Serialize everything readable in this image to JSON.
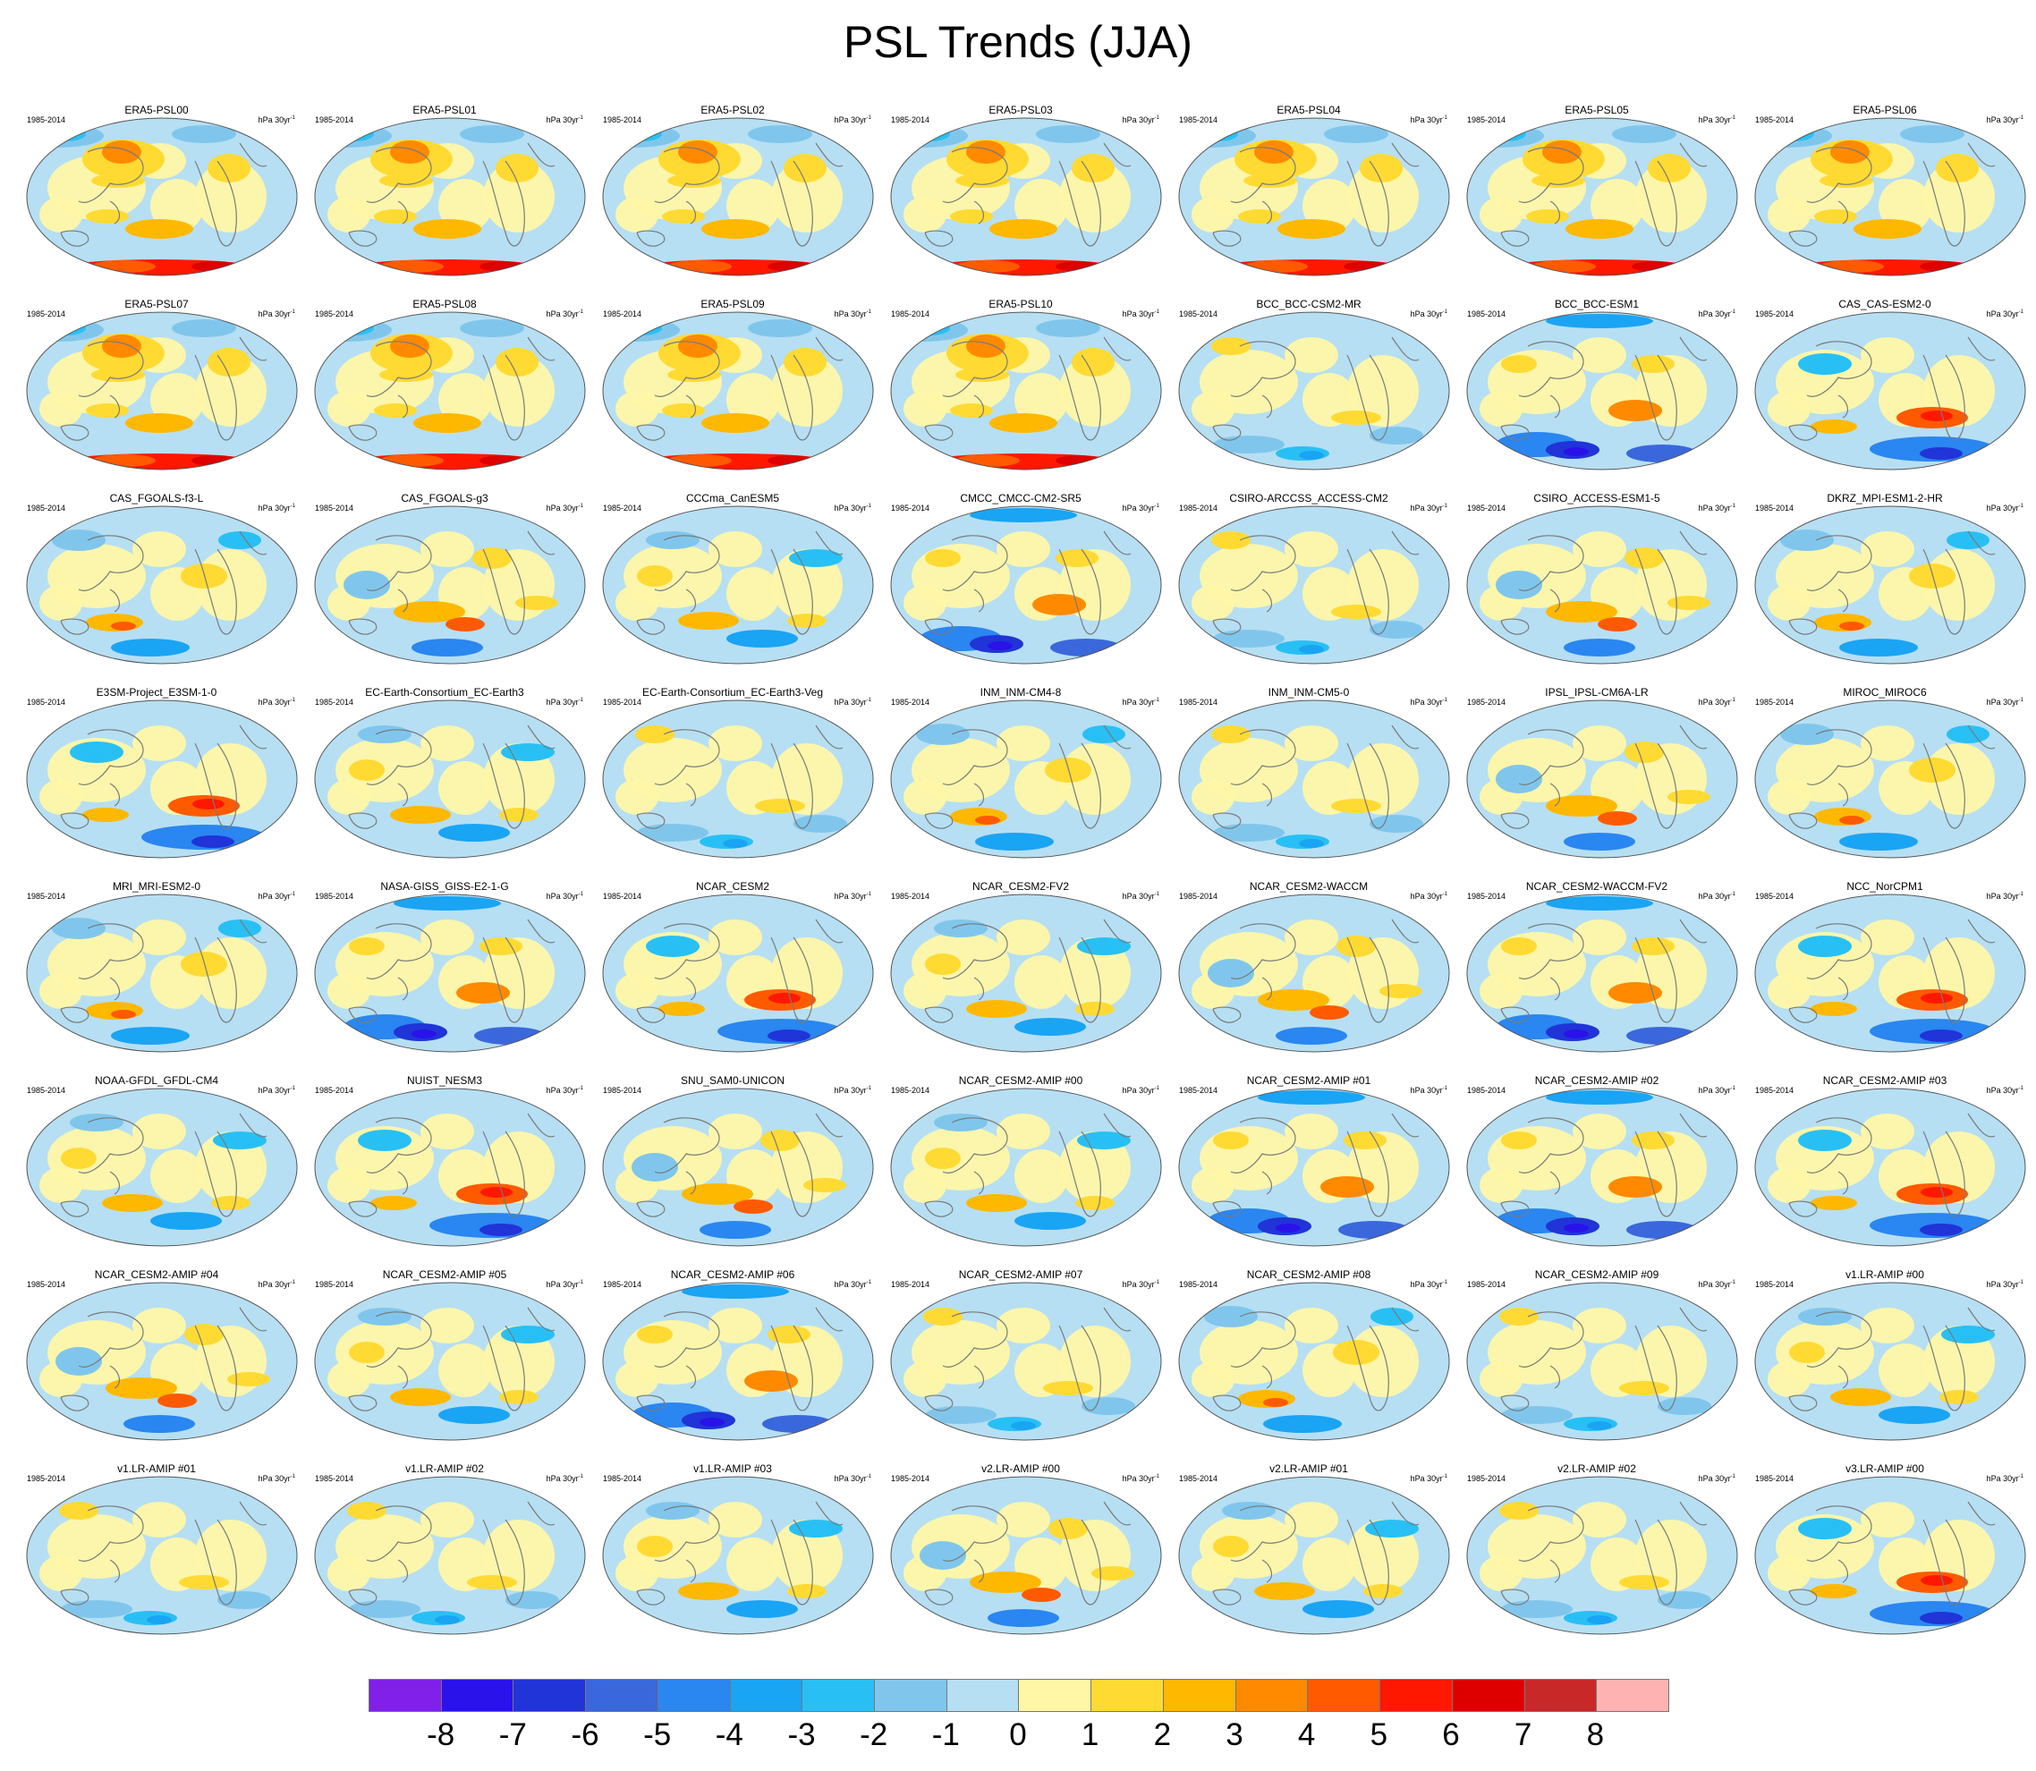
{
  "title": "PSL Trends (JJA)",
  "panel_period": "1985-2014",
  "panel_units_base": "hPa 30yr",
  "panel_units_exp": "-1",
  "colors": {
    "ocean_neutral": "#b6dff3",
    "land_neutral": "#fff7a6",
    "coastline": "#7a7a7a",
    "map_outline": "#555555"
  },
  "chart_data": {
    "type": "heatmap",
    "projection": "Robinson (global map, centered on Pacific)",
    "variable": "PSL",
    "season": "JJA",
    "colorbar": {
      "tick_labels": [
        "-8",
        "-7",
        "-6",
        "-5",
        "-4",
        "-3",
        "-2",
        "-1",
        "0",
        "1",
        "2",
        "3",
        "4",
        "5",
        "6",
        "7",
        "8"
      ],
      "colors": [
        "#8020e8",
        "#2a12ea",
        "#2034d8",
        "#3a68dc",
        "#2a86f0",
        "#1aa4f4",
        "#28c0f4",
        "#80c6ec",
        "#b6dff3",
        "#fff7a6",
        "#ffda33",
        "#ffb800",
        "#ff8a00",
        "#ff5a00",
        "#ff1800",
        "#de0000",
        "#c82828",
        "#ffb2b2"
      ]
    },
    "panels": [
      {
        "name": "ERA5-PSL00",
        "style": 0
      },
      {
        "name": "ERA5-PSL01",
        "style": 0
      },
      {
        "name": "ERA5-PSL02",
        "style": 0
      },
      {
        "name": "ERA5-PSL03",
        "style": 0
      },
      {
        "name": "ERA5-PSL04",
        "style": 0
      },
      {
        "name": "ERA5-PSL05",
        "style": 0
      },
      {
        "name": "ERA5-PSL06",
        "style": 0
      },
      {
        "name": "ERA5-PSL07",
        "style": 0
      },
      {
        "name": "ERA5-PSL08",
        "style": 0
      },
      {
        "name": "ERA5-PSL09",
        "style": 0
      },
      {
        "name": "ERA5-PSL10",
        "style": 0
      },
      {
        "name": "BCC_BCC-CSM2-MR",
        "style": 1
      },
      {
        "name": "BCC_BCC-ESM1",
        "style": 2
      },
      {
        "name": "CAS_CAS-ESM2-0",
        "style": 3
      },
      {
        "name": "CAS_FGOALS-f3-L",
        "style": 4
      },
      {
        "name": "CAS_FGOALS-g3",
        "style": 5
      },
      {
        "name": "CCCma_CanESM5",
        "style": 6
      },
      {
        "name": "CMCC_CMCC-CM2-SR5",
        "style": 2
      },
      {
        "name": "CSIRO-ARCCSS_ACCESS-CM2",
        "style": 1
      },
      {
        "name": "CSIRO_ACCESS-ESM1-5",
        "style": 5
      },
      {
        "name": "DKRZ_MPI-ESM1-2-HR",
        "style": 4
      },
      {
        "name": "E3SM-Project_E3SM-1-0",
        "style": 3
      },
      {
        "name": "EC-Earth-Consortium_EC-Earth3",
        "style": 6
      },
      {
        "name": "EC-Earth-Consortium_EC-Earth3-Veg",
        "style": 1
      },
      {
        "name": "INM_INM-CM4-8",
        "style": 4
      },
      {
        "name": "INM_INM-CM5-0",
        "style": 1
      },
      {
        "name": "IPSL_IPSL-CM6A-LR",
        "style": 5
      },
      {
        "name": "MIROC_MIROC6",
        "style": 4
      },
      {
        "name": "MRI_MRI-ESM2-0",
        "style": 4
      },
      {
        "name": "NASA-GISS_GISS-E2-1-G",
        "style": 2
      },
      {
        "name": "NCAR_CESM2",
        "style": 3
      },
      {
        "name": "NCAR_CESM2-FV2",
        "style": 6
      },
      {
        "name": "NCAR_CESM2-WACCM",
        "style": 5
      },
      {
        "name": "NCAR_CESM2-WACCM-FV2",
        "style": 2
      },
      {
        "name": "NCC_NorCPM1",
        "style": 3
      },
      {
        "name": "NOAA-GFDL_GFDL-CM4",
        "style": 6
      },
      {
        "name": "NUIST_NESM3",
        "style": 3
      },
      {
        "name": "SNU_SAM0-UNICON",
        "style": 5
      },
      {
        "name": "NCAR_CESM2-AMIP  #00",
        "style": 6
      },
      {
        "name": "NCAR_CESM2-AMIP  #01",
        "style": 2
      },
      {
        "name": "NCAR_CESM2-AMIP  #02",
        "style": 2
      },
      {
        "name": "NCAR_CESM2-AMIP  #03",
        "style": 3
      },
      {
        "name": "NCAR_CESM2-AMIP  #04",
        "style": 5
      },
      {
        "name": "NCAR_CESM2-AMIP  #05",
        "style": 6
      },
      {
        "name": "NCAR_CESM2-AMIP  #06",
        "style": 2
      },
      {
        "name": "NCAR_CESM2-AMIP  #07",
        "style": 1
      },
      {
        "name": "NCAR_CESM2-AMIP  #08",
        "style": 4
      },
      {
        "name": "NCAR_CESM2-AMIP  #09",
        "style": 1
      },
      {
        "name": "v1.LR-AMIP  #00",
        "style": 6
      },
      {
        "name": "v1.LR-AMIP  #01",
        "style": 1
      },
      {
        "name": "v1.LR-AMIP  #02",
        "style": 1
      },
      {
        "name": "v1.LR-AMIP  #03",
        "style": 6
      },
      {
        "name": "v2.LR-AMIP  #00",
        "style": 5
      },
      {
        "name": "v2.LR-AMIP  #01",
        "style": 6
      },
      {
        "name": "v2.LR-AMIP  #02",
        "style": 1
      },
      {
        "name": "v3.LR-AMIP  #00",
        "style": 3
      }
    ]
  }
}
